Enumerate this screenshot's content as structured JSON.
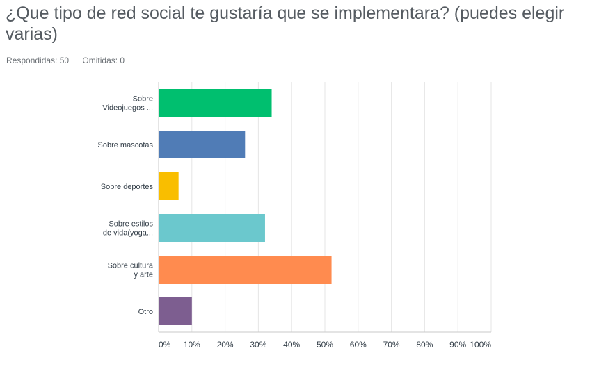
{
  "question": {
    "title": "¿Que tipo de red social te gustaría que se implementara? (puedes elegir varias)",
    "answered_label": "Respondidas: 50",
    "skipped_label": "Omitidas: 0"
  },
  "chart_data": {
    "type": "bar",
    "orientation": "horizontal",
    "categories": [
      [
        "Sobre",
        "Videojuegos ..."
      ],
      [
        "Sobre mascotas"
      ],
      [
        "Sobre deportes"
      ],
      [
        "Sobre estilos",
        "de vida(yoga..."
      ],
      [
        "Sobre cultura",
        "y arte"
      ],
      [
        "Otro"
      ]
    ],
    "values": [
      34,
      26,
      6,
      32,
      52,
      10
    ],
    "colors": [
      "#00bf6f",
      "#507cb6",
      "#f9be00",
      "#6bc8cd",
      "#ff8b4f",
      "#7d5e90"
    ],
    "xlim": [
      0,
      100
    ],
    "ticks": [
      "0%",
      "10%",
      "20%",
      "30%",
      "40%",
      "50%",
      "60%",
      "70%",
      "80%",
      "90%",
      "100%"
    ],
    "grid": true
  }
}
